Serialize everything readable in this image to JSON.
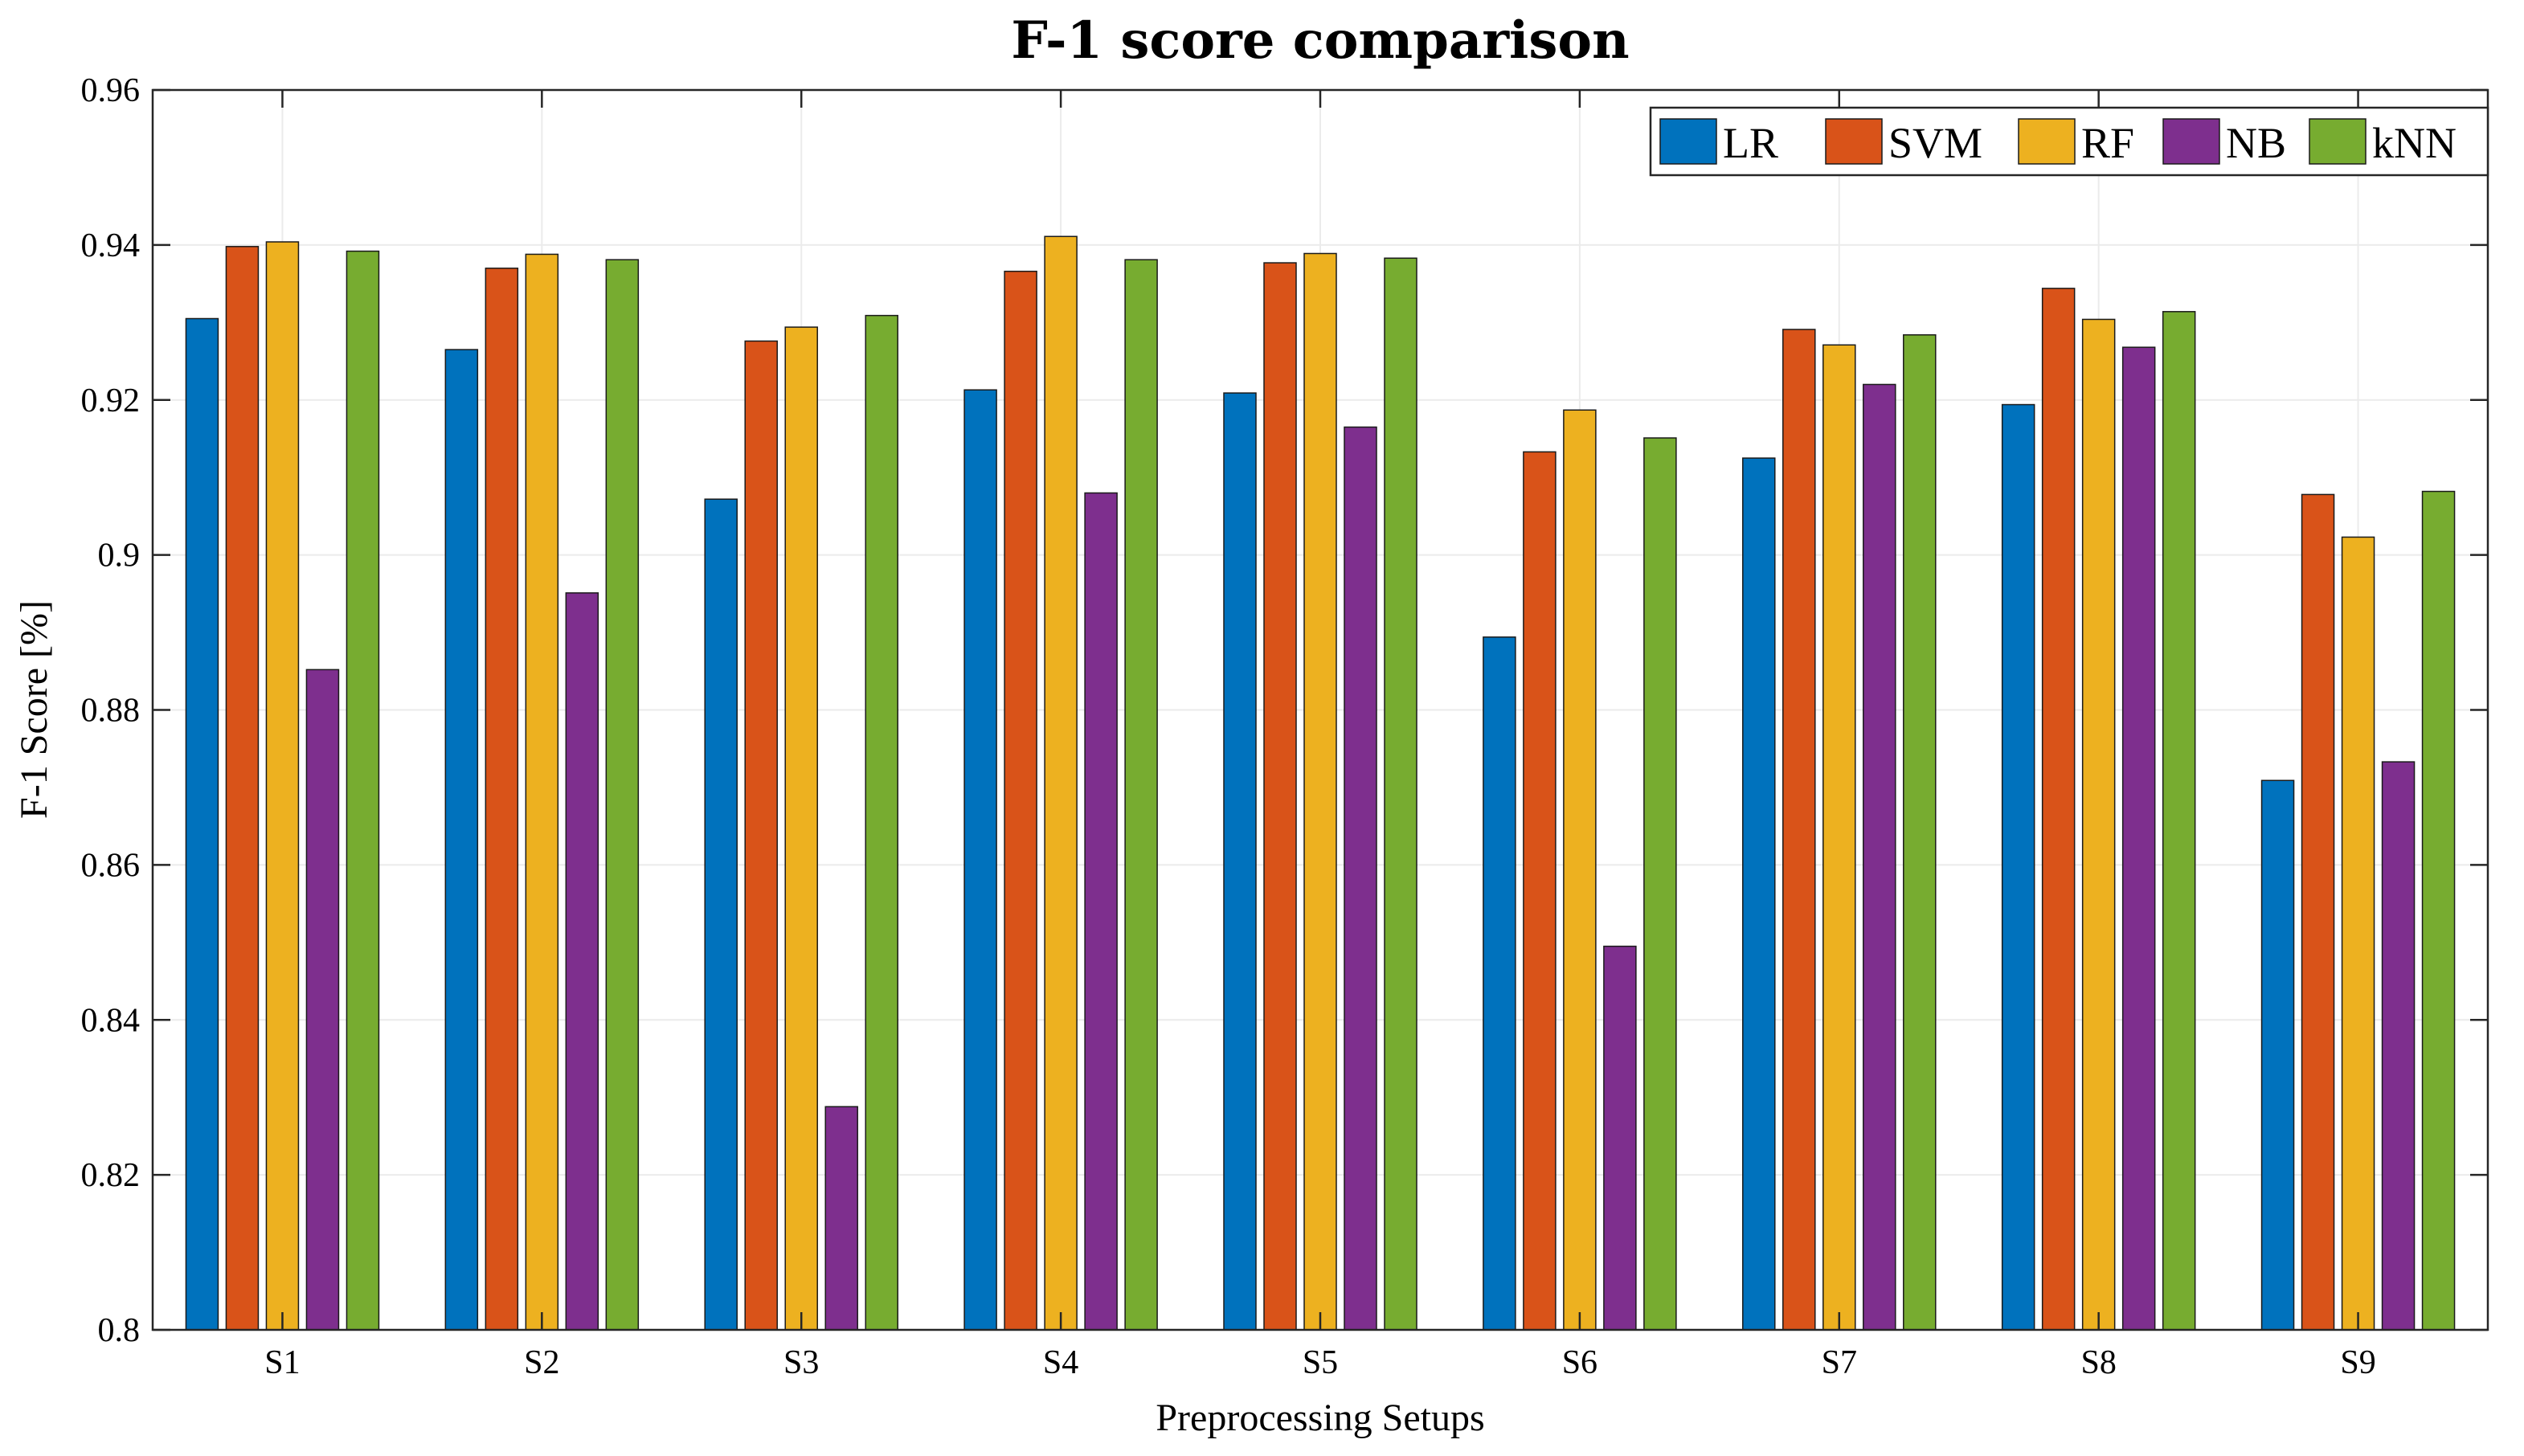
{
  "chart_data": {
    "type": "bar",
    "title": "F-1 score comparison",
    "xlabel": "Preprocessing Setups",
    "ylabel": "F-1 Score [%]",
    "ylim": [
      0.8,
      0.96
    ],
    "yticks": [
      0.8,
      0.82,
      0.84,
      0.86,
      0.88,
      0.9,
      0.92,
      0.94,
      0.96
    ],
    "ytick_labels": [
      "0.8",
      "0.82",
      "0.84",
      "0.86",
      "0.88",
      "0.9",
      "0.92",
      "0.94",
      "0.96"
    ],
    "grid": true,
    "legend_position": "top-right",
    "categories": [
      "S1",
      "S2",
      "S3",
      "S4",
      "S5",
      "S6",
      "S7",
      "S8",
      "S9"
    ],
    "series": [
      {
        "name": "LR",
        "color": "#0072BD",
        "values": [
          0.9305,
          0.9265,
          0.9072,
          0.9213,
          0.9209,
          0.8894,
          0.9125,
          0.9194,
          0.8709
        ]
      },
      {
        "name": "SVM",
        "color": "#D95319",
        "values": [
          0.9398,
          0.937,
          0.9276,
          0.9366,
          0.9377,
          0.9133,
          0.9291,
          0.9344,
          0.9078
        ]
      },
      {
        "name": "RF",
        "color": "#EDB120",
        "values": [
          0.9404,
          0.9388,
          0.9294,
          0.9411,
          0.9389,
          0.9187,
          0.9271,
          0.9304,
          0.9023
        ]
      },
      {
        "name": "NB",
        "color": "#7E2F8E",
        "values": [
          0.8852,
          0.8951,
          0.8288,
          0.908,
          0.9165,
          0.8495,
          0.922,
          0.9268,
          0.8733
        ]
      },
      {
        "name": "kNN",
        "color": "#77AC30",
        "values": [
          0.9392,
          0.9381,
          0.9309,
          0.9381,
          0.9383,
          0.9151,
          0.9284,
          0.9314,
          0.9082
        ]
      }
    ]
  }
}
